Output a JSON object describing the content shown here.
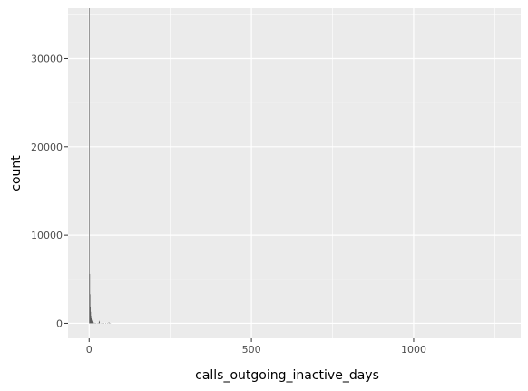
{
  "chart_data": {
    "type": "bar",
    "xlabel": "calls_outgoing_inactive_days",
    "ylabel": "count",
    "xlim": [
      -65,
      1330
    ],
    "ylim": [
      -1700,
      35700
    ],
    "x_ticks": [
      0,
      500,
      1000
    ],
    "x_tick_labels": [
      "0",
      "500",
      "1000"
    ],
    "y_ticks": [
      0,
      10000,
      20000,
      30000
    ],
    "y_tick_labels": [
      "0",
      "10000",
      "20000",
      "30000"
    ],
    "grid": true,
    "background": "#ebebeb",
    "bar_color": "#595959",
    "bin_width": 0.9,
    "bins": [
      {
        "x": 0,
        "count": 36000
      },
      {
        "x": 1,
        "count": 5600
      },
      {
        "x": 2,
        "count": 3300
      },
      {
        "x": 3,
        "count": 1900
      },
      {
        "x": 4,
        "count": 1300
      },
      {
        "x": 5,
        "count": 850
      },
      {
        "x": 6,
        "count": 550
      },
      {
        "x": 7,
        "count": 400
      },
      {
        "x": 8,
        "count": 300
      },
      {
        "x": 9,
        "count": 220
      },
      {
        "x": 10,
        "count": 170
      },
      {
        "x": 12,
        "count": 110
      },
      {
        "x": 14,
        "count": 80
      },
      {
        "x": 17,
        "count": 55
      },
      {
        "x": 20,
        "count": 45
      },
      {
        "x": 24,
        "count": 40
      },
      {
        "x": 28,
        "count": 60
      },
      {
        "x": 30,
        "count": 280
      },
      {
        "x": 31,
        "count": 160
      },
      {
        "x": 35,
        "count": 50
      },
      {
        "x": 40,
        "count": 30
      },
      {
        "x": 45,
        "count": 25
      },
      {
        "x": 50,
        "count": 20
      },
      {
        "x": 55,
        "count": 15
      },
      {
        "x": 60,
        "count": 120
      },
      {
        "x": 61,
        "count": 60
      },
      {
        "x": 65,
        "count": 10
      }
    ]
  }
}
